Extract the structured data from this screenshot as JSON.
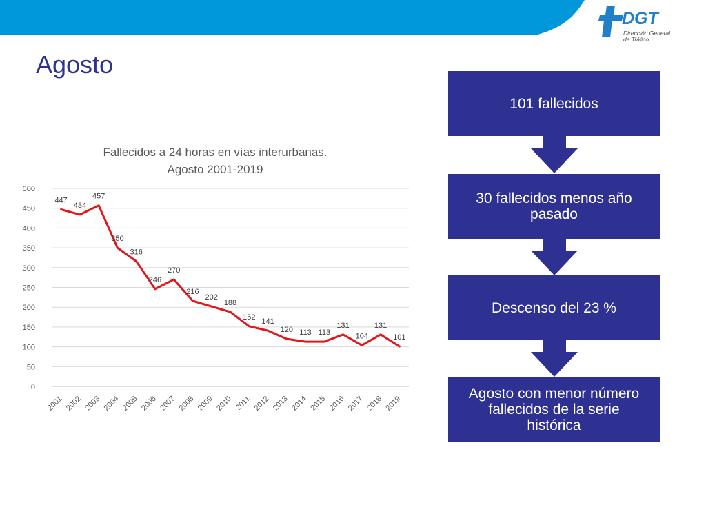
{
  "header": {
    "band_color": "#0097db",
    "logo": {
      "name": "DGT",
      "subtitle_line1": "Dirección General",
      "subtitle_line2": "de Tráfico"
    }
  },
  "page_title": "Agosto",
  "chart_data": {
    "type": "line",
    "title_line1": "Fallecidos a 24 horas en vías interurbanas.",
    "title_line2": "Agosto 2001-2019",
    "categories": [
      "2001",
      "2002",
      "2003",
      "2004",
      "2005",
      "2006",
      "2007",
      "2008",
      "2009",
      "2010",
      "2011",
      "2012",
      "2013",
      "2014",
      "2015",
      "2016",
      "2017",
      "2018",
      "2019"
    ],
    "values": [
      447,
      434,
      457,
      350,
      316,
      246,
      270,
      216,
      202,
      188,
      152,
      141,
      120,
      113,
      113,
      131,
      104,
      131,
      101
    ],
    "data_labels": [
      "447",
      "434",
      "457",
      "350",
      "316",
      "246",
      "270",
      "216",
      "202",
      "188",
      "152",
      "141",
      "120",
      "113",
      "113",
      "131",
      "104",
      "131",
      "101"
    ],
    "ylim": [
      0,
      500
    ],
    "y_ticks": [
      0,
      50,
      100,
      150,
      200,
      250,
      300,
      350,
      400,
      450,
      500
    ],
    "y_tick_labels": [
      "0",
      "50",
      "100",
      "150",
      "200",
      "250",
      "300",
      "350",
      "400",
      "450",
      "500"
    ],
    "grid": true,
    "line_color": "#e3161a",
    "xlabel": "",
    "ylabel": ""
  },
  "flow": {
    "box_color": "#2e3192",
    "boxes": [
      {
        "lines": [
          "101 fallecidos"
        ]
      },
      {
        "lines": [
          "30 fallecidos menos año",
          "pasado"
        ]
      },
      {
        "lines": [
          "Descenso del 23 %"
        ]
      },
      {
        "lines": [
          "Agosto con menor número",
          "fallecidos de la serie",
          "histórica"
        ]
      }
    ]
  }
}
